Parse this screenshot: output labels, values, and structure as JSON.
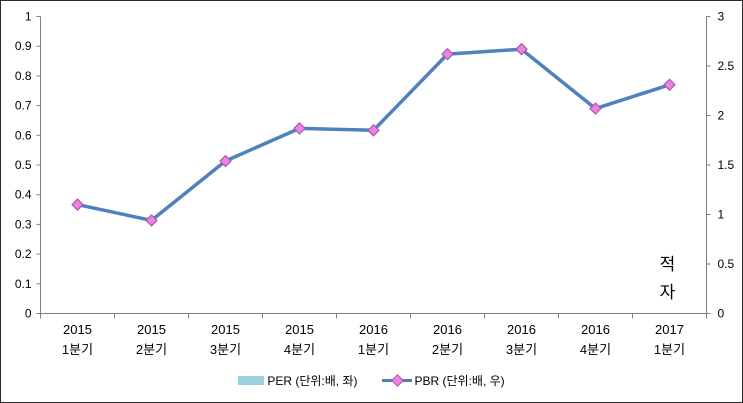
{
  "chart_data": {
    "type": "line",
    "title": "",
    "grid": false,
    "legend_position": "bottom",
    "categories": [
      [
        "2015",
        "1분기"
      ],
      [
        "2015",
        "2분기"
      ],
      [
        "2015",
        "3분기"
      ],
      [
        "2015",
        "4분기"
      ],
      [
        "2016",
        "1분기"
      ],
      [
        "2016",
        "2분기"
      ],
      [
        "2016",
        "3분기"
      ],
      [
        "2016",
        "4분기"
      ],
      [
        "2017",
        "1분기"
      ]
    ],
    "series": [
      {
        "name": "PER (단위:배, 좌)",
        "type": "bar",
        "axis": "left",
        "color": "#9dd1df",
        "values": [
          null,
          null,
          null,
          null,
          null,
          null,
          null,
          null,
          null
        ]
      },
      {
        "name": "PBR (단위:배, 우)",
        "type": "line",
        "axis": "right",
        "line_color": "#4f81bd",
        "marker": "diamond",
        "marker_fill": "#ee82dd",
        "marker_stroke": "#a65bb0",
        "values": [
          1.1,
          0.94,
          1.54,
          1.87,
          1.85,
          2.62,
          2.67,
          2.07,
          2.31
        ]
      }
    ],
    "left_axis": {
      "min": 0,
      "max": 1,
      "ticks": [
        "0",
        "0.1",
        "0.2",
        "0.3",
        "0.4",
        "0.5",
        "0.6",
        "0.7",
        "0.8",
        "0.9",
        "1"
      ]
    },
    "right_axis": {
      "min": 0,
      "max": 3,
      "ticks": [
        "0",
        "0.5",
        "1",
        "1.5",
        "2",
        "2.5",
        "3"
      ]
    },
    "annotation": {
      "text": "적자",
      "category_index": 8
    },
    "axis_color": "#808080",
    "text_color": "#000000"
  }
}
